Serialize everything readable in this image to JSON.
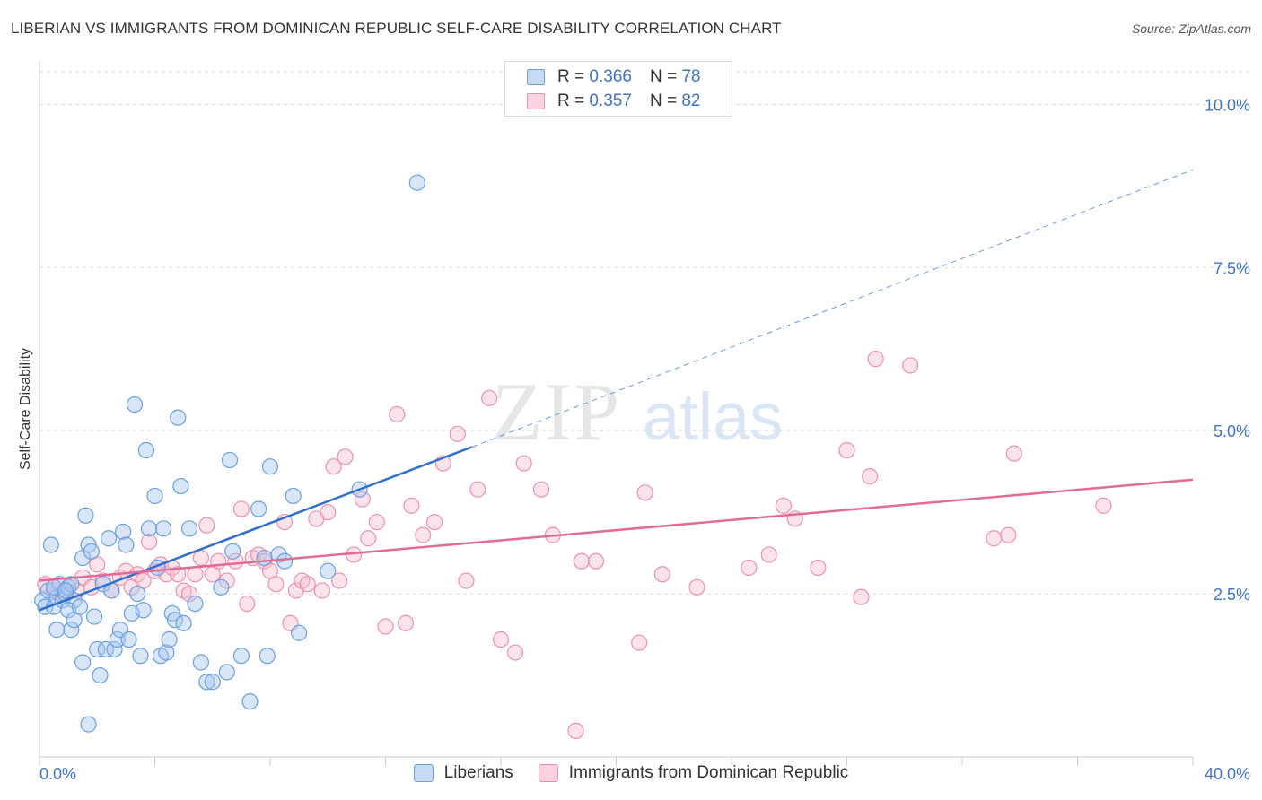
{
  "header": {
    "title": "LIBERIAN VS IMMIGRANTS FROM DOMINICAN REPUBLIC SELF-CARE DISABILITY CORRELATION CHART",
    "source": "Source: ZipAtlas.com"
  },
  "watermark": {
    "zip": "ZIP",
    "atlas": "atlas"
  },
  "legend_top": [
    {
      "r_label": "R =",
      "r_value": "0.366",
      "n_label": "N =",
      "n_value": "78"
    },
    {
      "r_label": "R =",
      "r_value": "0.357",
      "n_label": "N =",
      "n_value": "82"
    }
  ],
  "colors": {
    "blue_fill": "#a9c8ef",
    "blue_stroke": "#6c9fe0",
    "blue_line": "#2f6fcf",
    "pink_fill": "#f7c0d0",
    "pink_stroke": "#ec91ad",
    "pink_line": "#e26a95",
    "tick_label": "#3f74c6",
    "grid": "#dddddd"
  },
  "chart_data": {
    "type": "scatter",
    "title": "LIBERIAN VS IMMIGRANTS FROM DOMINICAN REPUBLIC SELF-CARE DISABILITY CORRELATION CHART",
    "xlabel": "",
    "ylabel": "Self-Care Disability",
    "xlim": [
      0,
      40
    ],
    "ylim": [
      0,
      10.5
    ],
    "x_tick_labels": [
      {
        "value": 0,
        "label": "0.0%"
      },
      {
        "value": 40,
        "label": "40.0%"
      }
    ],
    "y_tick_labels": [
      {
        "value": 2.5,
        "label": "2.5%"
      },
      {
        "value": 5,
        "label": "5.0%"
      },
      {
        "value": 7.5,
        "label": "7.5%"
      },
      {
        "value": 10,
        "label": "10.0%"
      }
    ],
    "grid": true,
    "legend_position": "bottom",
    "series": [
      {
        "name": "Liberians",
        "color": "#6c9fe0",
        "trend": {
          "x": [
            0,
            15
          ],
          "y": [
            2.25,
            4.75
          ],
          "dashed_to": [
            40,
            9.0
          ]
        },
        "points": [
          [
            0.1,
            2.4
          ],
          [
            0.2,
            2.3
          ],
          [
            0.3,
            2.55
          ],
          [
            0.4,
            3.25
          ],
          [
            0.5,
            2.3
          ],
          [
            0.6,
            2.45
          ],
          [
            0.7,
            2.65
          ],
          [
            0.8,
            2.4
          ],
          [
            0.9,
            2.5
          ],
          [
            1.0,
            2.6
          ],
          [
            1.1,
            2.65
          ],
          [
            1.2,
            2.4
          ],
          [
            0.5,
            2.6
          ],
          [
            0.6,
            1.95
          ],
          [
            0.9,
            2.55
          ],
          [
            1.0,
            2.25
          ],
          [
            1.1,
            1.95
          ],
          [
            1.2,
            2.1
          ],
          [
            1.4,
            2.3
          ],
          [
            1.5,
            3.05
          ],
          [
            1.6,
            3.7
          ],
          [
            1.7,
            3.25
          ],
          [
            1.8,
            3.15
          ],
          [
            1.9,
            2.15
          ],
          [
            2.0,
            1.65
          ],
          [
            2.1,
            1.25
          ],
          [
            1.5,
            1.45
          ],
          [
            1.7,
            0.5
          ],
          [
            2.2,
            2.65
          ],
          [
            2.3,
            1.65
          ],
          [
            2.4,
            3.35
          ],
          [
            2.5,
            2.55
          ],
          [
            2.6,
            1.65
          ],
          [
            2.7,
            1.8
          ],
          [
            2.8,
            1.95
          ],
          [
            2.9,
            3.45
          ],
          [
            3.0,
            3.25
          ],
          [
            3.1,
            1.8
          ],
          [
            3.2,
            2.2
          ],
          [
            3.3,
            5.4
          ],
          [
            3.4,
            2.5
          ],
          [
            3.5,
            1.55
          ],
          [
            3.6,
            2.25
          ],
          [
            3.7,
            4.7
          ],
          [
            3.8,
            3.5
          ],
          [
            4.0,
            4.0
          ],
          [
            4.1,
            2.9
          ],
          [
            4.2,
            1.55
          ],
          [
            4.3,
            3.5
          ],
          [
            4.4,
            1.6
          ],
          [
            4.5,
            1.8
          ],
          [
            4.6,
            2.2
          ],
          [
            4.7,
            2.1
          ],
          [
            4.8,
            5.2
          ],
          [
            4.9,
            4.15
          ],
          [
            5.0,
            2.05
          ],
          [
            5.2,
            3.5
          ],
          [
            5.4,
            2.35
          ],
          [
            5.6,
            1.45
          ],
          [
            5.8,
            1.15
          ],
          [
            6.0,
            1.15
          ],
          [
            6.3,
            2.6
          ],
          [
            6.5,
            1.3
          ],
          [
            6.6,
            4.55
          ],
          [
            6.7,
            3.15
          ],
          [
            7.0,
            1.55
          ],
          [
            7.3,
            0.85
          ],
          [
            7.6,
            3.8
          ],
          [
            7.8,
            3.05
          ],
          [
            7.9,
            1.55
          ],
          [
            8.0,
            4.45
          ],
          [
            8.3,
            3.1
          ],
          [
            8.5,
            3.0
          ],
          [
            8.8,
            4.0
          ],
          [
            9.0,
            1.9
          ],
          [
            10.0,
            2.85
          ],
          [
            11.1,
            4.1
          ],
          [
            13.1,
            8.8
          ]
        ]
      },
      {
        "name": "Immigrants from Dominican Republic",
        "color": "#ec91ad",
        "trend": {
          "x": [
            0,
            40
          ],
          "y": [
            2.7,
            4.25
          ]
        },
        "points": [
          [
            0.2,
            2.65
          ],
          [
            0.5,
            2.55
          ],
          [
            0.8,
            2.5
          ],
          [
            1.0,
            2.6
          ],
          [
            1.3,
            2.55
          ],
          [
            1.5,
            2.75
          ],
          [
            1.8,
            2.6
          ],
          [
            2.0,
            2.95
          ],
          [
            2.2,
            2.7
          ],
          [
            2.5,
            2.55
          ],
          [
            2.8,
            2.75
          ],
          [
            3.0,
            2.85
          ],
          [
            3.2,
            2.6
          ],
          [
            3.4,
            2.8
          ],
          [
            3.6,
            2.7
          ],
          [
            3.8,
            3.3
          ],
          [
            4.0,
            2.85
          ],
          [
            4.2,
            2.95
          ],
          [
            4.4,
            2.8
          ],
          [
            4.6,
            2.9
          ],
          [
            4.8,
            2.8
          ],
          [
            5.0,
            2.55
          ],
          [
            5.2,
            2.5
          ],
          [
            5.4,
            2.8
          ],
          [
            5.6,
            3.05
          ],
          [
            5.8,
            3.55
          ],
          [
            6.0,
            2.8
          ],
          [
            6.2,
            3.0
          ],
          [
            6.5,
            2.7
          ],
          [
            6.8,
            3.0
          ],
          [
            7.0,
            3.8
          ],
          [
            7.2,
            2.35
          ],
          [
            7.4,
            3.05
          ],
          [
            7.6,
            3.1
          ],
          [
            7.8,
            3.0
          ],
          [
            8.0,
            2.85
          ],
          [
            8.2,
            2.65
          ],
          [
            8.5,
            3.6
          ],
          [
            8.7,
            2.05
          ],
          [
            8.9,
            2.55
          ],
          [
            9.1,
            2.7
          ],
          [
            9.3,
            2.65
          ],
          [
            9.6,
            3.65
          ],
          [
            9.8,
            2.55
          ],
          [
            10.0,
            3.75
          ],
          [
            10.2,
            4.45
          ],
          [
            10.4,
            2.7
          ],
          [
            10.6,
            4.6
          ],
          [
            10.9,
            3.1
          ],
          [
            11.2,
            3.95
          ],
          [
            11.4,
            3.35
          ],
          [
            11.7,
            3.6
          ],
          [
            12.0,
            2.0
          ],
          [
            12.4,
            5.25
          ],
          [
            12.7,
            2.05
          ],
          [
            12.9,
            3.85
          ],
          [
            13.3,
            3.4
          ],
          [
            13.7,
            3.6
          ],
          [
            14.0,
            4.5
          ],
          [
            14.5,
            4.95
          ],
          [
            14.8,
            2.7
          ],
          [
            15.2,
            4.1
          ],
          [
            15.6,
            5.5
          ],
          [
            16.0,
            1.8
          ],
          [
            16.5,
            1.6
          ],
          [
            16.8,
            4.5
          ],
          [
            17.4,
            4.1
          ],
          [
            17.8,
            3.4
          ],
          [
            18.6,
            0.4
          ],
          [
            18.8,
            3.0
          ],
          [
            19.3,
            3.0
          ],
          [
            20.8,
            1.75
          ],
          [
            21.0,
            4.05
          ],
          [
            21.6,
            2.8
          ],
          [
            22.8,
            2.6
          ],
          [
            24.6,
            2.9
          ],
          [
            25.3,
            3.1
          ],
          [
            25.8,
            3.85
          ],
          [
            26.2,
            3.65
          ],
          [
            27.0,
            2.9
          ],
          [
            28.0,
            4.7
          ],
          [
            28.5,
            2.45
          ]
        ],
        "extra_points": [
          [
            28.8,
            4.3
          ],
          [
            29.0,
            6.1
          ],
          [
            30.2,
            6.0
          ],
          [
            33.1,
            3.35
          ],
          [
            33.6,
            3.4
          ],
          [
            33.8,
            4.65
          ],
          [
            36.9,
            3.85
          ]
        ]
      }
    ]
  },
  "legend_bottom": [
    {
      "label": "Liberians"
    },
    {
      "label": "Immigrants from Dominican Republic"
    }
  ]
}
